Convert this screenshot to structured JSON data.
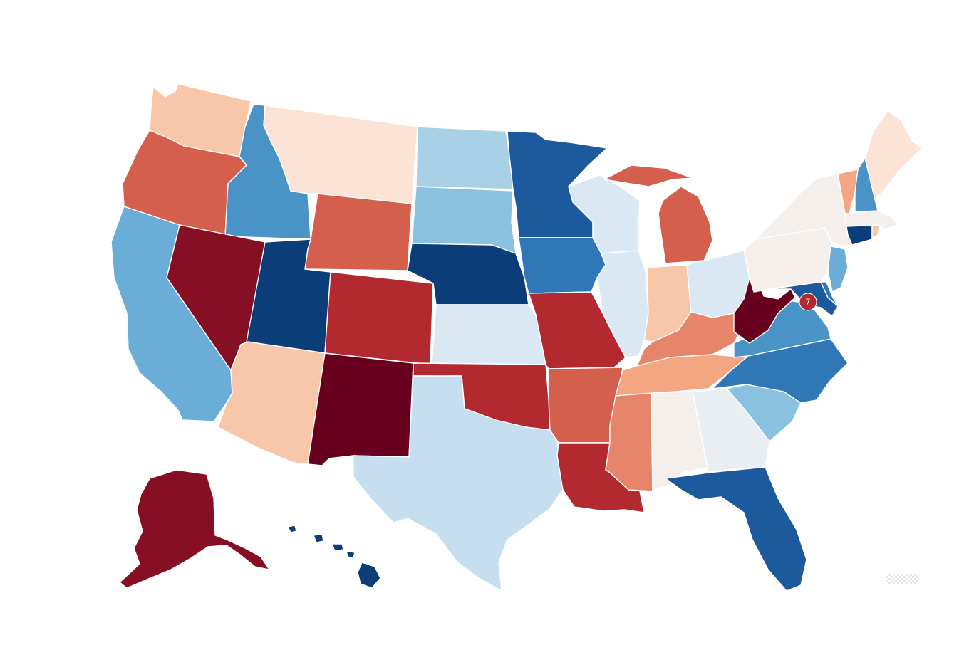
{
  "map": {
    "type": "choropleth-us-states",
    "palette": {
      "r5": "#67001f",
      "r4": "#870f24",
      "r3": "#b2292f",
      "r2": "#d45f4c",
      "r1": "#e7856a",
      "r0": "#f4a582",
      "o1": "#f8c6a9",
      "o0": "#fbe3d6",
      "n0": "#f5efec",
      "n1": "#e8eef2",
      "b0": "#d9e8f2",
      "b1": "#c5dff0",
      "b2": "#a8d1e8",
      "b3": "#8ac0e0",
      "b4": "#6aadd6",
      "b5": "#4a93c7",
      "b6": "#2f77b6",
      "b7": "#1c5a9d",
      "b8": "#0b3d78"
    },
    "states": [
      {
        "id": "WA",
        "fill": "o1"
      },
      {
        "id": "OR",
        "fill": "r2"
      },
      {
        "id": "CA",
        "fill": "b4"
      },
      {
        "id": "ID",
        "fill": "b5"
      },
      {
        "id": "NV",
        "fill": "r4"
      },
      {
        "id": "MT",
        "fill": "o0"
      },
      {
        "id": "WY",
        "fill": "r2"
      },
      {
        "id": "UT",
        "fill": "b8"
      },
      {
        "id": "AZ",
        "fill": "o1"
      },
      {
        "id": "CO",
        "fill": "r3"
      },
      {
        "id": "NM",
        "fill": "r5"
      },
      {
        "id": "ND",
        "fill": "b2"
      },
      {
        "id": "SD",
        "fill": "b3"
      },
      {
        "id": "NE",
        "fill": "b8"
      },
      {
        "id": "KS",
        "fill": "b0"
      },
      {
        "id": "OK",
        "fill": "r3"
      },
      {
        "id": "TX",
        "fill": "b1"
      },
      {
        "id": "MN",
        "fill": "b7"
      },
      {
        "id": "IA",
        "fill": "b6"
      },
      {
        "id": "MO",
        "fill": "r3"
      },
      {
        "id": "AR",
        "fill": "r2"
      },
      {
        "id": "LA",
        "fill": "r3"
      },
      {
        "id": "WI",
        "fill": "b0"
      },
      {
        "id": "IL",
        "fill": "b0"
      },
      {
        "id": "MI",
        "fill": "r2"
      },
      {
        "id": "IN",
        "fill": "o1"
      },
      {
        "id": "OH",
        "fill": "b0"
      },
      {
        "id": "KY",
        "fill": "r1"
      },
      {
        "id": "TN",
        "fill": "r0"
      },
      {
        "id": "MS",
        "fill": "r1"
      },
      {
        "id": "AL",
        "fill": "n0"
      },
      {
        "id": "GA",
        "fill": "n1"
      },
      {
        "id": "FL",
        "fill": "b7"
      },
      {
        "id": "SC",
        "fill": "b3"
      },
      {
        "id": "NC",
        "fill": "b6"
      },
      {
        "id": "VA",
        "fill": "b5"
      },
      {
        "id": "WV",
        "fill": "r5"
      },
      {
        "id": "MD",
        "fill": "b7"
      },
      {
        "id": "DE",
        "fill": "b6"
      },
      {
        "id": "PA",
        "fill": "n0"
      },
      {
        "id": "NJ",
        "fill": "b4"
      },
      {
        "id": "NY",
        "fill": "n0"
      },
      {
        "id": "CT",
        "fill": "b8"
      },
      {
        "id": "RI",
        "fill": "o1"
      },
      {
        "id": "MA",
        "fill": "n0"
      },
      {
        "id": "VT",
        "fill": "r0"
      },
      {
        "id": "NH",
        "fill": "b5"
      },
      {
        "id": "ME",
        "fill": "o0"
      },
      {
        "id": "AK",
        "fill": "r4"
      },
      {
        "id": "HI",
        "fill": "b8"
      }
    ],
    "dc_badge": {
      "label": "7",
      "fill": "r3"
    }
  }
}
